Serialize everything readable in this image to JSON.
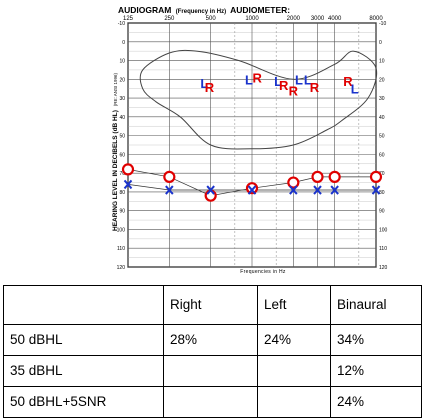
{
  "chart_data": {
    "type": "scatter",
    "title": "AUDIOGRAM",
    "title_subtitle": "(Frequency in Hz)",
    "title_suffix": "AUDIOMETER:",
    "xlabel": "Frequencies in Hz",
    "ylabel": "HEARING LEVEL IN DECIBELS (dB HL)",
    "ylabel_note": "(RE: ANSI 1996)",
    "x_scale": "log",
    "xlim": [
      125,
      8000
    ],
    "ylim": [
      -10,
      120
    ],
    "y_inverted": true,
    "grid": true,
    "x_top_ticks": [
      {
        "label": "125",
        "x": 125
      },
      {
        "label": "250",
        "x": 250
      },
      {
        "label": "500",
        "x": 500
      },
      {
        "label": "1000",
        "x": 1000
      },
      {
        "label": "2000",
        "x": 2000
      },
      {
        "label": "3000",
        "x": 3000
      },
      {
        "label": "4000",
        "x": 4000
      },
      {
        "label": "8000",
        "x": 8000
      }
    ],
    "y_ticks": [
      "-10",
      "0",
      "10",
      "20",
      "30",
      "40",
      "50",
      "60",
      "70",
      "80",
      "90",
      "100",
      "110",
      "120"
    ],
    "y_tick_values": [
      -10,
      0,
      10,
      20,
      30,
      40,
      50,
      60,
      70,
      80,
      90,
      100,
      110,
      120
    ],
    "series": [
      {
        "symbol": "O",
        "color": "#e00000",
        "points": [
          [
            125,
            68
          ],
          [
            250,
            72
          ],
          [
            500,
            82
          ],
          [
            1000,
            78
          ],
          [
            2000,
            75
          ],
          [
            3000,
            72
          ],
          [
            4000,
            72
          ],
          [
            8000,
            72
          ]
        ]
      },
      {
        "symbol": "X",
        "color": "#1a33cc",
        "points": [
          [
            125,
            76
          ],
          [
            250,
            79
          ],
          [
            500,
            79
          ],
          [
            1000,
            79
          ],
          [
            2000,
            79
          ],
          [
            3000,
            79
          ],
          [
            4000,
            79
          ],
          [
            8000,
            79
          ]
        ]
      }
    ],
    "aided_markers": [
      {
        "symbol": "L",
        "color": "#1a33cc",
        "x": 450,
        "y": 22
      },
      {
        "symbol": "R",
        "color": "#e00000",
        "x": 490,
        "y": 24
      },
      {
        "symbol": "L",
        "color": "#1a33cc",
        "x": 950,
        "y": 20
      },
      {
        "symbol": "R",
        "color": "#e00000",
        "x": 1090,
        "y": 19
      },
      {
        "symbol": "L",
        "color": "#1a33cc",
        "x": 1550,
        "y": 21
      },
      {
        "symbol": "R",
        "color": "#e00000",
        "x": 1700,
        "y": 23
      },
      {
        "symbol": "R",
        "color": "#e00000",
        "x": 2000,
        "y": 26
      },
      {
        "symbol": "L",
        "color": "#1a33cc",
        "x": 2200,
        "y": 20
      },
      {
        "symbol": "L",
        "color": "#1a33cc",
        "x": 2550,
        "y": 20
      },
      {
        "symbol": "R",
        "color": "#e00000",
        "x": 2850,
        "y": 24
      },
      {
        "symbol": "R",
        "color": "#e00000",
        "x": 5000,
        "y": 21
      },
      {
        "symbol": "L",
        "color": "#1a33cc",
        "x": 5600,
        "y": 25
      }
    ],
    "speech_banana": [
      [
        160,
        15
      ],
      [
        250,
        6
      ],
      [
        400,
        5
      ],
      [
        800,
        10
      ],
      [
        2000,
        20
      ],
      [
        4000,
        12
      ],
      [
        5500,
        5
      ],
      [
        8000,
        14
      ],
      [
        7000,
        30
      ],
      [
        4500,
        42
      ],
      [
        3500,
        47
      ],
      [
        2000,
        55
      ],
      [
        1000,
        57
      ],
      [
        500,
        55
      ],
      [
        300,
        40
      ],
      [
        200,
        32
      ],
      [
        160,
        25
      ]
    ]
  },
  "speech_table": {
    "headers": [
      "",
      "Right",
      "Left",
      "Binaural"
    ],
    "rows": [
      [
        "50 dBHL",
        "28%",
        "24%",
        "34%"
      ],
      [
        "35 dBHL",
        "",
        "",
        "12%"
      ],
      [
        "50 dBHL+5SNR",
        "",
        "",
        "24%"
      ]
    ]
  }
}
